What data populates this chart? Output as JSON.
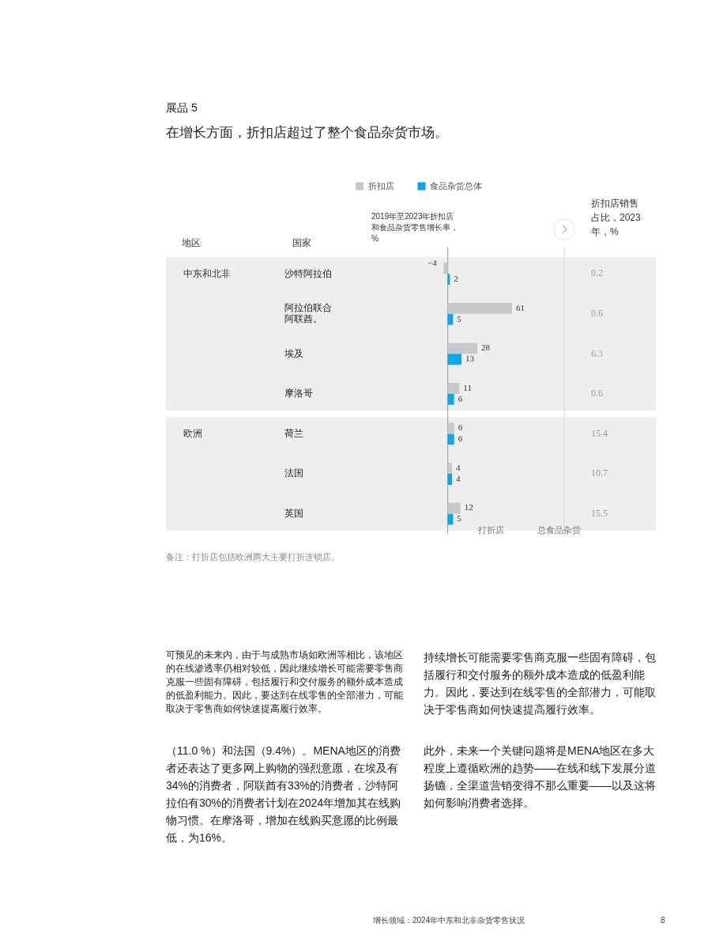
{
  "chart_data": {
    "type": "bar",
    "orientation": "horizontal",
    "subtitle": "展品 5",
    "title": "在增长方面，折扣店超过了整个食品杂货市场。",
    "xlabel": "2019年至2023年折扣店和食品杂货零售增长率，%",
    "ylabel": "国家",
    "categories": [
      "沙特阿拉伯",
      "阿拉伯联合阿联酋。",
      "埃及",
      "摩洛哥",
      "荷兰",
      "法国",
      "英国"
    ],
    "series": [
      {
        "name": "折扣店",
        "color": "#c8c8c8",
        "values": [
          -4,
          61,
          28,
          11,
          6,
          4,
          12
        ]
      },
      {
        "name": "食品杂货总体",
        "color": "#00a9f4",
        "values": [
          2,
          5,
          13,
          6,
          6,
          4,
          5
        ]
      }
    ],
    "data_labels": true,
    "legend": "top",
    "tick_labels": "y",
    "bands": [
      {
        "axis": "y",
        "from": "沙特阿拉伯",
        "to": "摩洛哥",
        "label": "中东和北非",
        "color": "#efeeed"
      },
      {
        "axis": "y",
        "from": "荷兰",
        "to": "英国",
        "label": "欧洲",
        "color": "#efeeed"
      }
    ],
    "annotations": [
      "地区",
      "打折店",
      "总食品杂货",
      "备注：打折店包括欧洲两大主要打折连锁店。",
      "可预见的未来内，由于与成熟市场如欧洲等相比，该地区的在线渗透率仍相对较低，因此继续增长可能需要零售商克服一些固有障碍，包括履行和交付服务的额外成本造成的低盈利能力。因此，要达到在线零售的全部潜力，可能取决于零售商如何快速提高履行效率。",
      "持续增长可能需要零售商克服一些固有障碍，包括履行和交付服务的额外成本造成的低盈利能力。因此，要达到在线零售的全部潜力，可能取决于零售商如何快速提高履行效率。",
      "（11.0 %）和法国（9.4%）。MENA地区的消费者还表达了更多网上购物的强烈意愿，在埃及有34%的消费者，阿联酋有33%的消费者，沙特阿拉伯有30%的消费者计划在2024年增加其在线购物习惯。在摩洛哥，增加在线购买意愿的比例最低，为16%。",
      "此外，未来一个关键问题将是MENA地区在多大程度上遵循欧洲的趋势——在线和线下发展分道扬镳，全渠道营销变得不那么重要——以及这将如何影响消费者选择。",
      "增长领域：2024年中东和北非杂货零售状况",
      "8",
      "折扣店销售占比，2023年，%",
      "0.2",
      "0.6",
      "6.3",
      "0.6",
      "15.4",
      "10.7",
      "15.5"
    ]
  }
}
